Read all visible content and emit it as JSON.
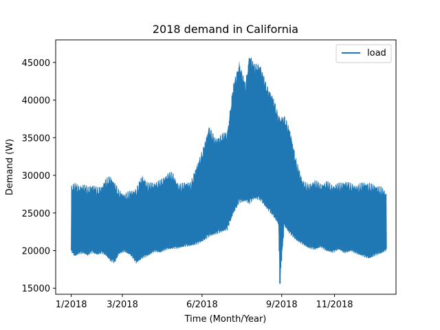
{
  "chart_data": {
    "type": "line",
    "title": "2018 demand in California",
    "xlabel": "Time (Month/Year)",
    "ylabel": "Demand (W)",
    "xlim": [
      "2017-12-14",
      "2019-01-11"
    ],
    "ylim": [
      14200,
      48000
    ],
    "x_ticks": [
      {
        "date": "2018-01-01",
        "label": "1/2018"
      },
      {
        "date": "2018-03-01",
        "label": "3/2018"
      },
      {
        "date": "2018-06-01",
        "label": "6/2018"
      },
      {
        "date": "2018-09-01",
        "label": "9/2018"
      },
      {
        "date": "2018-11-01",
        "label": "11/2018"
      }
    ],
    "y_ticks": [
      15000,
      20000,
      25000,
      30000,
      35000,
      40000,
      45000
    ],
    "legend": {
      "position": "top-right",
      "entries": [
        "load"
      ]
    },
    "grid": false,
    "colors": {
      "series": "#1f77b4"
    },
    "series": [
      {
        "name": "load",
        "x": [
          "2018-01-01",
          "2018-01-05",
          "2018-01-10",
          "2018-01-15",
          "2018-01-20",
          "2018-01-25",
          "2018-01-31",
          "2018-02-05",
          "2018-02-10",
          "2018-02-15",
          "2018-02-20",
          "2018-02-25",
          "2018-03-03",
          "2018-03-10",
          "2018-03-17",
          "2018-03-24",
          "2018-03-31",
          "2018-04-07",
          "2018-04-14",
          "2018-04-21",
          "2018-04-28",
          "2018-05-05",
          "2018-05-12",
          "2018-05-19",
          "2018-05-26",
          "2018-06-02",
          "2018-06-09",
          "2018-06-16",
          "2018-06-23",
          "2018-06-30",
          "2018-07-07",
          "2018-07-14",
          "2018-07-21",
          "2018-07-26",
          "2018-07-31",
          "2018-08-07",
          "2018-08-14",
          "2018-08-21",
          "2018-08-28",
          "2018-08-30",
          "2018-09-04",
          "2018-09-11",
          "2018-09-18",
          "2018-09-25",
          "2018-10-02",
          "2018-10-09",
          "2018-10-16",
          "2018-10-23",
          "2018-10-30",
          "2018-11-06",
          "2018-11-13",
          "2018-11-20",
          "2018-11-27",
          "2018-12-04",
          "2018-12-11",
          "2018-12-18",
          "2018-12-25",
          "2018-12-31"
        ],
        "daily_min": [
          19800,
          19200,
          19500,
          19600,
          19300,
          19700,
          19400,
          19600,
          19300,
          18600,
          18300,
          19500,
          19800,
          19400,
          18300,
          18900,
          19300,
          19800,
          19700,
          20100,
          20200,
          20300,
          20500,
          20600,
          20800,
          21200,
          21800,
          22100,
          22400,
          22700,
          24800,
          26300,
          26500,
          26200,
          26800,
          26700,
          25600,
          24700,
          23500,
          15600,
          23200,
          22100,
          21300,
          20800,
          20300,
          20100,
          20400,
          19900,
          19700,
          20100,
          19600,
          19900,
          19500,
          19200,
          18900,
          19300,
          19600,
          20000
        ],
        "daily_max": [
          28800,
          29000,
          28700,
          28900,
          28500,
          28900,
          28400,
          28700,
          29600,
          30000,
          29200,
          28100,
          27600,
          28000,
          28300,
          30100,
          29000,
          29200,
          29400,
          30300,
          30500,
          28800,
          29200,
          29100,
          31500,
          33500,
          36700,
          35000,
          35500,
          35900,
          42000,
          45300,
          42200,
          46500,
          44800,
          45000,
          42200,
          40900,
          38200,
          38000,
          38000,
          36000,
          32000,
          29500,
          28800,
          29500,
          28900,
          29300,
          28800,
          29000,
          29300,
          29000,
          28700,
          29200,
          29000,
          28800,
          28500,
          27800
        ]
      }
    ]
  }
}
